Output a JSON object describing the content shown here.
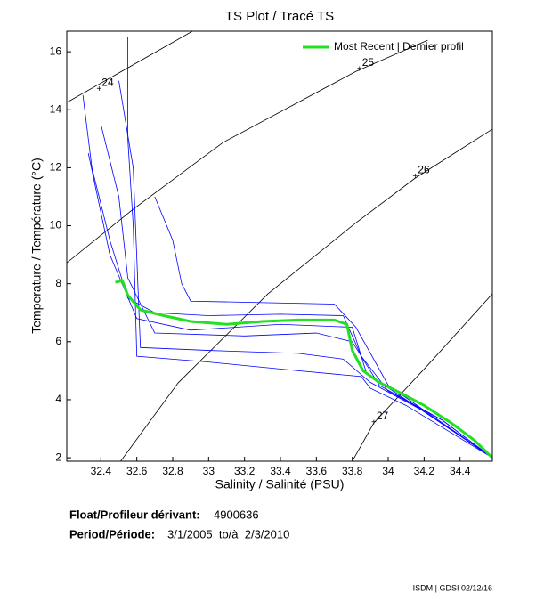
{
  "chart_data": {
    "type": "line",
    "title": "TS Plot / Tracé TS",
    "xlabel": "Salinity / Salinité (PSU)",
    "ylabel": "Temperature / Température (°C)",
    "xlim": [
      32.21,
      34.58
    ],
    "ylim": [
      1.88,
      16.71
    ],
    "xticks": [
      32.4,
      32.6,
      32.8,
      33,
      33.2,
      33.4,
      33.6,
      33.8,
      34,
      34.2,
      34.4
    ],
    "yticks": [
      2,
      4,
      6,
      8,
      10,
      12,
      14,
      16
    ],
    "grid": false,
    "legend": "upper right",
    "contours": [
      {
        "label": 24,
        "x": [
          32.21,
          32.91
        ],
        "y": [
          14.25,
          16.71
        ],
        "label_x": 32.39,
        "label_y": 14.7
      },
      {
        "label": 25,
        "x": [
          32.21,
          32.58,
          33.08,
          33.82,
          34.22
        ],
        "y": [
          8.72,
          10.57,
          12.87,
          15.32,
          16.4
        ],
        "label_x": 33.84,
        "label_y": 15.4
      },
      {
        "label": 26,
        "x": [
          32.51,
          32.83,
          33.33,
          33.82,
          34.15,
          34.58
        ],
        "y": [
          1.88,
          4.58,
          7.65,
          10.1,
          11.64,
          13.33
        ],
        "label_x": 34.15,
        "label_y": 11.7
      },
      {
        "label": 27,
        "x": [
          33.8,
          33.92,
          34.22,
          34.58
        ],
        "y": [
          1.88,
          3.2,
          5.19,
          7.65
        ],
        "label_x": 33.92,
        "label_y": 3.2
      }
    ],
    "series": [
      {
        "color": "#0000ff",
        "x": [
          32.3,
          32.35,
          32.45,
          32.55,
          32.7,
          33.0,
          33.4,
          33.75,
          33.85,
          34.0,
          34.3,
          34.58
        ],
        "values": [
          14.5,
          12,
          9.5,
          7.5,
          7.0,
          6.9,
          6.95,
          6.9,
          5.5,
          4.3,
          3.3,
          2.0
        ]
      },
      {
        "color": "#0000ff",
        "x": [
          32.55,
          32.55,
          32.58,
          32.6,
          33.0,
          33.5,
          33.85,
          33.9,
          34.1,
          34.58
        ],
        "values": [
          16.5,
          13,
          10,
          5.5,
          5.3,
          5.0,
          4.8,
          4.4,
          3.8,
          2.0
        ]
      },
      {
        "color": "#0000ff",
        "x": [
          32.4,
          32.5,
          32.55,
          32.7,
          33.2,
          33.6,
          33.8,
          33.95,
          34.3,
          34.58
        ],
        "values": [
          13.5,
          11,
          8.2,
          6.3,
          6.2,
          6.3,
          6.0,
          4.5,
          3.3,
          2.0
        ]
      },
      {
        "color": "#0000ff",
        "x": [
          32.7,
          32.8,
          32.85,
          32.9,
          33.3,
          33.7,
          33.82,
          34.0,
          34.58
        ],
        "values": [
          11,
          9.5,
          8,
          7.4,
          7.35,
          7.3,
          6.5,
          4.5,
          2.0
        ]
      },
      {
        "color": "#0000ff",
        "x": [
          32.5,
          32.58,
          32.62,
          33.0,
          33.5,
          33.75,
          33.9,
          34.2,
          34.58
        ],
        "values": [
          15,
          12,
          5.8,
          5.7,
          5.6,
          5.4,
          4.6,
          3.6,
          2.0
        ]
      },
      {
        "color": "#0000ff",
        "x": [
          32.33,
          32.45,
          32.6,
          32.9,
          33.4,
          33.8,
          33.88,
          34.1,
          34.58
        ],
        "values": [
          12.5,
          9,
          6.8,
          6.4,
          6.6,
          6.5,
          4.9,
          4.0,
          2.0
        ]
      },
      {
        "name": "Most Recent | Dernier profil",
        "color": "#22e022",
        "x": [
          32.48,
          32.52,
          32.55,
          32.62,
          32.75,
          32.9,
          33.1,
          33.3,
          33.5,
          33.7,
          33.77,
          33.8,
          33.86,
          33.95,
          34.08,
          34.2,
          34.35,
          34.48,
          34.58
        ],
        "values": [
          8.05,
          8.1,
          7.6,
          7.1,
          6.9,
          6.7,
          6.6,
          6.7,
          6.75,
          6.75,
          6.6,
          5.7,
          5.0,
          4.6,
          4.2,
          3.8,
          3.2,
          2.6,
          2.0
        ]
      }
    ]
  },
  "info": {
    "float_label": "Float/Profileur dérivant:",
    "float_id": "4900636",
    "period_label": "Period/Période:",
    "period": "3/1/2005  to/à  2/3/2010",
    "credit": "ISDM | GDSI 02/12/16"
  }
}
